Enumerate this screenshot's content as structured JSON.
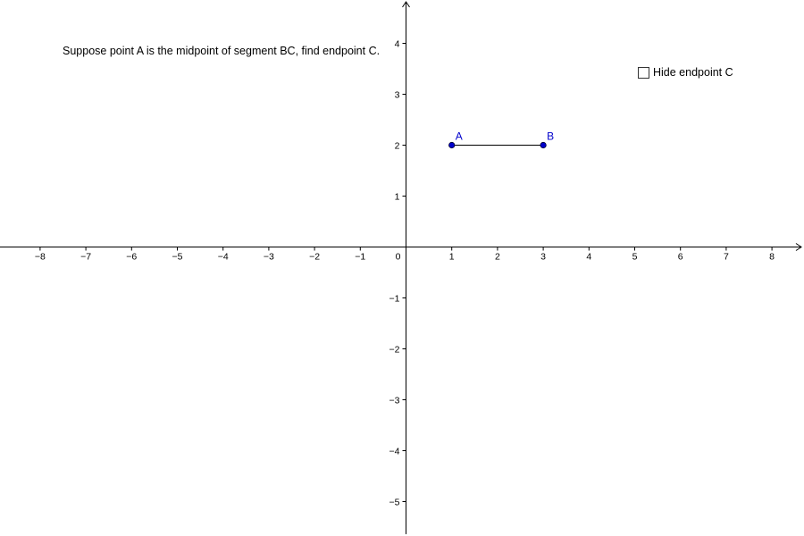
{
  "prompt": {
    "text": "Suppose point A is the midpoint of segment BC, find endpoint C."
  },
  "checkbox": {
    "label": "Hide endpoint C",
    "checked": false
  },
  "graph": {
    "x_range": [
      -8,
      8
    ],
    "y_range": [
      -5,
      4
    ],
    "x_tick_labels": [
      "−8",
      "−7",
      "−6",
      "−5",
      "−4",
      "−3",
      "−2",
      "−1",
      "0",
      "1",
      "2",
      "3",
      "4",
      "5",
      "6",
      "7",
      "8"
    ],
    "y_tick_labels": [
      "4",
      "3",
      "2",
      "1",
      "−1",
      "−2",
      "−3",
      "−4",
      "−5"
    ],
    "axis_color": "#000000",
    "point_color": "#0000cc",
    "segment_color": "#000000"
  },
  "points": [
    {
      "label": "A",
      "x": 1,
      "y": 2
    },
    {
      "label": "B",
      "x": 3,
      "y": 2
    }
  ],
  "segments": [
    {
      "from": "A",
      "to": "B"
    }
  ]
}
